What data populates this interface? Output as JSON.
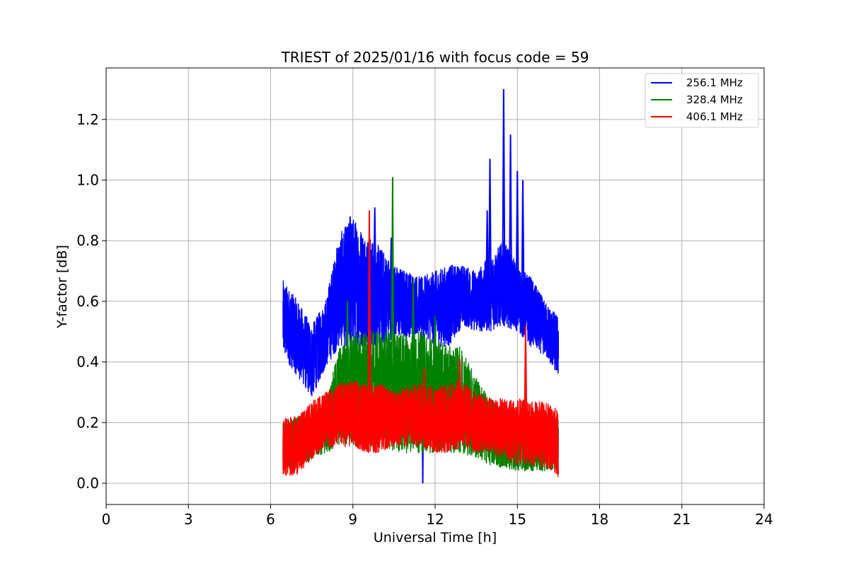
{
  "chart_data": {
    "type": "line",
    "title": "TRIEST of 2025/01/16 with focus code = 59",
    "xlabel": "Universal Time [h]",
    "ylabel": "Y-factor [dB]",
    "xlim": [
      0,
      24
    ],
    "ylim": [
      -0.07,
      1.37
    ],
    "xticks": [
      0,
      3,
      6,
      9,
      12,
      15,
      18,
      21,
      24
    ],
    "yticks": [
      0.0,
      0.2,
      0.4,
      0.6,
      0.8,
      1.0,
      1.2
    ],
    "xtick_labels": [
      "0",
      "3",
      "6",
      "9",
      "12",
      "15",
      "18",
      "21",
      "24"
    ],
    "ytick_labels": [
      "0.0",
      "0.2",
      "0.4",
      "0.6",
      "0.8",
      "1.0",
      "1.2"
    ],
    "grid": true,
    "legend_position": "top-right",
    "x_range_of_data": [
      6.45,
      16.5
    ],
    "series": [
      {
        "name": "256.1 MHz",
        "color": "#0000ff",
        "envelope": {
          "x": [
            6.45,
            7.0,
            7.5,
            8.0,
            8.5,
            9.0,
            9.5,
            10.0,
            10.5,
            11.0,
            11.5,
            12.0,
            12.5,
            13.0,
            13.5,
            14.0,
            14.5,
            15.0,
            15.5,
            16.0,
            16.5
          ],
          "upper": [
            0.67,
            0.6,
            0.52,
            0.6,
            0.82,
            0.88,
            0.82,
            0.78,
            0.72,
            0.7,
            0.68,
            0.7,
            0.72,
            0.72,
            0.7,
            0.75,
            0.8,
            0.72,
            0.68,
            0.6,
            0.55
          ],
          "lower": [
            0.42,
            0.35,
            0.28,
            0.38,
            0.45,
            0.45,
            0.45,
            0.45,
            0.48,
            0.48,
            0.5,
            0.45,
            0.45,
            0.52,
            0.5,
            0.5,
            0.52,
            0.5,
            0.45,
            0.42,
            0.35
          ]
        },
        "spikes": [
          [
            8.9,
            0.88
          ],
          [
            9.8,
            0.91
          ],
          [
            10.4,
            0.81
          ],
          [
            11.55,
            0.0
          ],
          [
            13.9,
            0.9
          ],
          [
            14.0,
            1.07
          ],
          [
            14.5,
            1.3
          ],
          [
            14.75,
            1.15
          ],
          [
            15.0,
            1.03
          ],
          [
            15.2,
            1.0
          ]
        ]
      },
      {
        "name": "328.4 MHz",
        "color": "#008000",
        "envelope": {
          "x": [
            6.45,
            7.0,
            7.5,
            8.0,
            8.5,
            9.0,
            9.5,
            10.0,
            10.5,
            11.0,
            11.5,
            12.0,
            12.5,
            13.0,
            13.5,
            14.0,
            14.5,
            15.0,
            15.5,
            16.0,
            16.5
          ],
          "upper": [
            0.2,
            0.22,
            0.24,
            0.26,
            0.45,
            0.5,
            0.5,
            0.5,
            0.5,
            0.5,
            0.5,
            0.48,
            0.45,
            0.45,
            0.35,
            0.28,
            0.25,
            0.24,
            0.22,
            0.22,
            0.22
          ],
          "lower": [
            0.05,
            0.05,
            0.08,
            0.1,
            0.12,
            0.12,
            0.12,
            0.12,
            0.1,
            0.1,
            0.1,
            0.1,
            0.1,
            0.1,
            0.08,
            0.06,
            0.05,
            0.04,
            0.04,
            0.04,
            0.05
          ]
        },
        "spikes": [
          [
            8.8,
            0.6
          ],
          [
            10.45,
            1.01
          ],
          [
            11.2,
            0.67
          ],
          [
            12.0,
            0.55
          ]
        ]
      },
      {
        "name": "406.1 MHz",
        "color": "#ff0000",
        "envelope": {
          "x": [
            6.45,
            7.0,
            7.5,
            8.0,
            8.5,
            9.0,
            9.5,
            10.0,
            10.5,
            11.0,
            11.5,
            12.0,
            12.5,
            13.0,
            13.5,
            14.0,
            14.5,
            15.0,
            15.5,
            16.0,
            16.5
          ],
          "upper": [
            0.22,
            0.22,
            0.27,
            0.3,
            0.33,
            0.34,
            0.33,
            0.33,
            0.3,
            0.32,
            0.33,
            0.32,
            0.33,
            0.34,
            0.3,
            0.28,
            0.28,
            0.28,
            0.27,
            0.27,
            0.24
          ],
          "lower": [
            0.02,
            0.03,
            0.08,
            0.12,
            0.12,
            0.12,
            0.1,
            0.1,
            0.12,
            0.12,
            0.12,
            0.1,
            0.1,
            0.12,
            0.1,
            0.1,
            0.08,
            0.06,
            0.06,
            0.05,
            0.02
          ]
        },
        "spikes": [
          [
            9.6,
            0.9
          ],
          [
            12.9,
            0.41
          ],
          [
            15.3,
            0.52
          ],
          [
            11.6,
            0.38
          ]
        ]
      }
    ]
  }
}
